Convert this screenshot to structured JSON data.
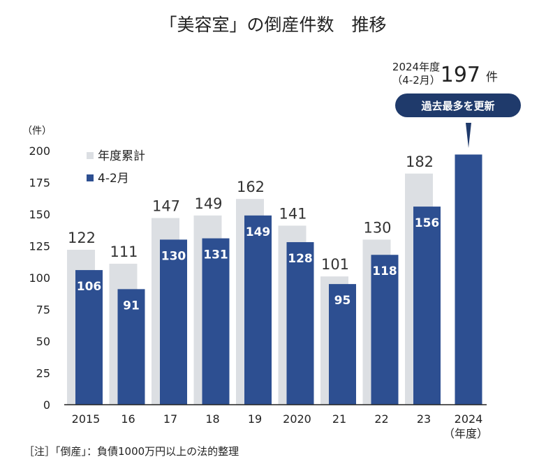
{
  "chart_data": {
    "type": "bar",
    "title": "「美容室」の倒産件数　推移",
    "ylabel": "（件）",
    "ylim": [
      0,
      200
    ],
    "yticks": [
      0,
      25,
      50,
      75,
      100,
      125,
      150,
      175,
      200
    ],
    "categories": [
      "2015",
      "16",
      "17",
      "18",
      "19",
      "2020",
      "21",
      "22",
      "23",
      "2024"
    ],
    "x_extra_label": "（年度）",
    "legend_position": "top-left",
    "series": [
      {
        "name": "年度累計",
        "values": [
          122,
          111,
          147,
          149,
          162,
          141,
          101,
          130,
          182,
          null
        ],
        "color": "#dcdfe3"
      },
      {
        "name": "4-2月",
        "values": [
          106,
          91,
          130,
          131,
          149,
          128,
          95,
          118,
          156,
          197
        ],
        "color": "#2d4f91"
      }
    ],
    "callout": {
      "line1": "2024年度",
      "line2": "（4-2月）",
      "value": "197",
      "unit": "件",
      "badge": "過去最多を更新",
      "badge_color": "#1f3a6b"
    },
    "note": "［注］「倒産」：負債1000万円以上の法的整理"
  }
}
